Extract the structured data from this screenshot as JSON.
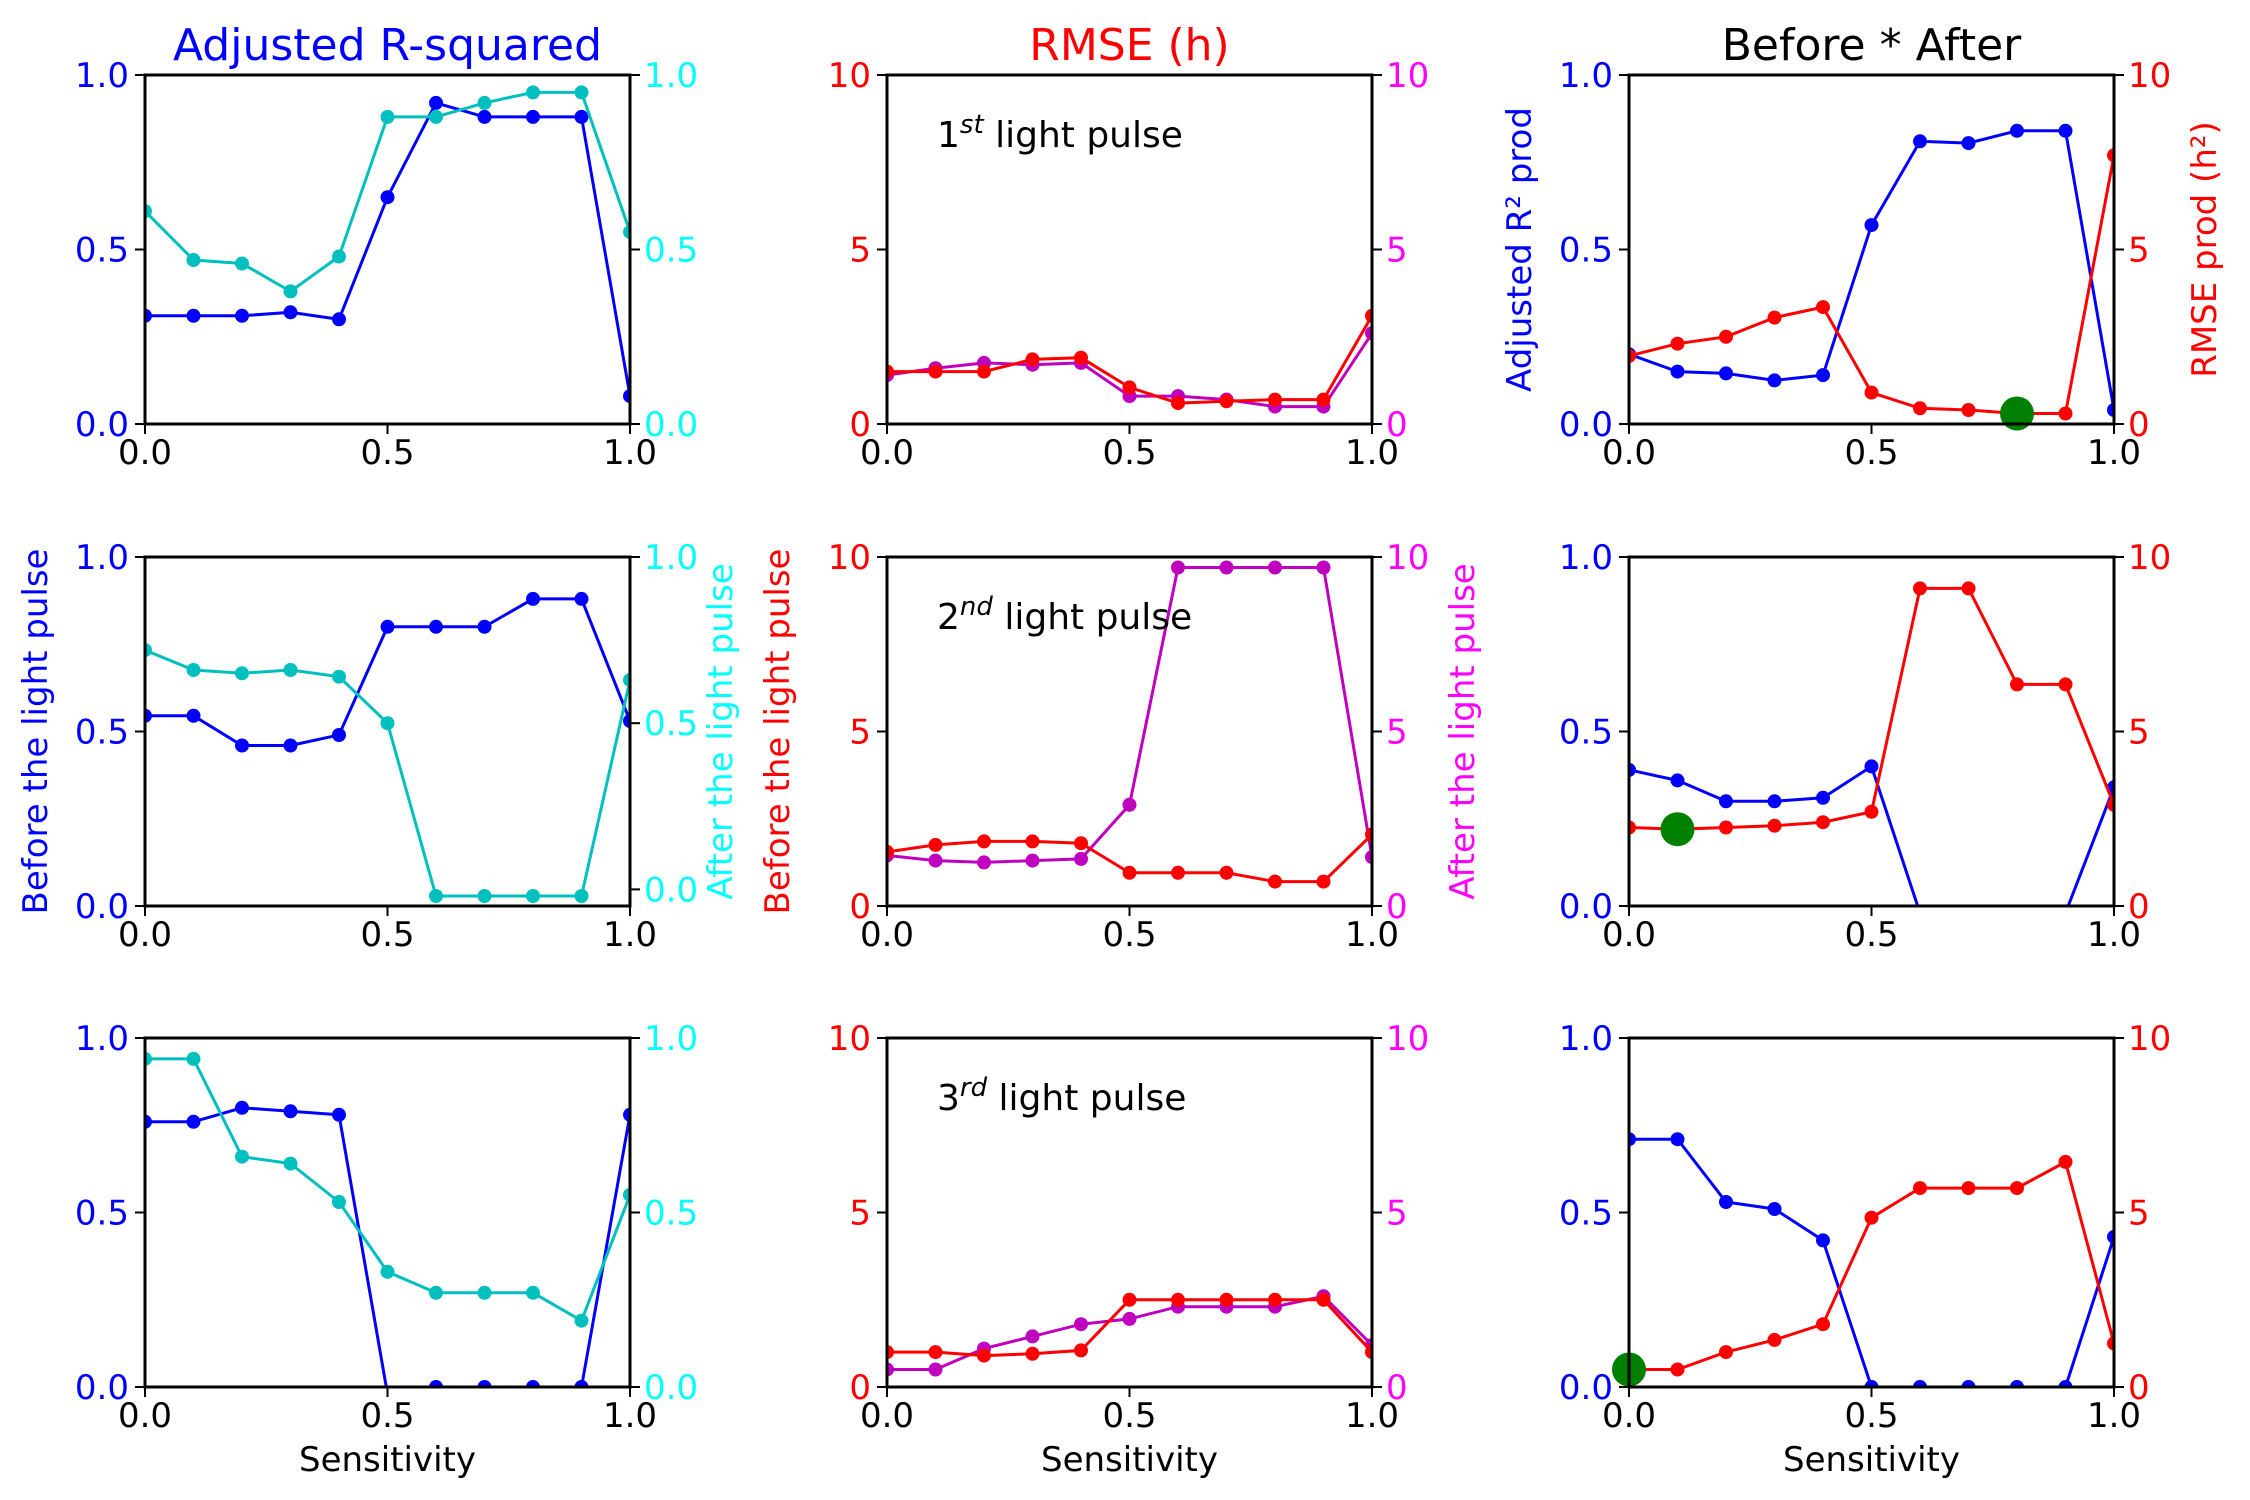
{
  "figure": {
    "column_titles": [
      {
        "text": "Adjusted R-squared",
        "color": "#0000ff"
      },
      {
        "text": "RMSE (h)",
        "color": "#ff0000"
      },
      {
        "text": "Before * After",
        "color": "#000000"
      }
    ],
    "row_annotations": [
      {
        "num": "1",
        "sup": "st",
        "rest": " light pulse"
      },
      {
        "num": "2",
        "sup": "nd",
        "rest": " light pulse"
      },
      {
        "num": "3",
        "sup": "rd",
        "rest": " light pulse"
      }
    ],
    "xlabel": "Sensitivity"
  },
  "chart_data": [
    {
      "type": "line",
      "id": "r2-pulse1",
      "row": 0,
      "col": 0,
      "xlim": [
        0,
        1
      ],
      "xticks": [
        "0.0",
        "0.5",
        "1.0"
      ],
      "left_axis": {
        "ylim": [
          0,
          1
        ],
        "ticks": [
          "0.0",
          "0.5",
          "1.0"
        ],
        "color": "#0000ff",
        "label": ""
      },
      "right_axis": {
        "ylim": [
          0,
          1
        ],
        "ticks": [
          "0.0",
          "0.5",
          "1.0"
        ],
        "color": "#00ffff",
        "label": ""
      },
      "x": [
        0,
        0.1,
        0.2,
        0.3,
        0.4,
        0.5,
        0.6,
        0.7,
        0.8,
        0.9,
        1.0
      ],
      "series": [
        {
          "axis": "left",
          "color": "#0000ff",
          "y": [
            0.31,
            0.31,
            0.31,
            0.32,
            0.3,
            0.65,
            0.92,
            0.88,
            0.88,
            0.88,
            0.08
          ]
        },
        {
          "axis": "right",
          "color": "#00bfbf",
          "y": [
            0.61,
            0.47,
            0.46,
            0.38,
            0.48,
            0.88,
            0.88,
            0.92,
            0.95,
            0.95,
            0.55
          ]
        }
      ]
    },
    {
      "type": "line",
      "id": "rmse-pulse1",
      "row": 0,
      "col": 1,
      "xlim": [
        0,
        1
      ],
      "xticks": [
        "0.0",
        "0.5",
        "1.0"
      ],
      "left_axis": {
        "ylim": [
          0,
          10
        ],
        "ticks": [
          "0",
          "5",
          "10"
        ],
        "color": "#ff0000",
        "label": ""
      },
      "right_axis": {
        "ylim": [
          0,
          10
        ],
        "ticks": [
          "0",
          "5",
          "10"
        ],
        "color": "#ff00ff",
        "label": ""
      },
      "x": [
        0,
        0.1,
        0.2,
        0.3,
        0.4,
        0.5,
        0.6,
        0.7,
        0.8,
        0.9,
        1.0
      ],
      "series": [
        {
          "axis": "right",
          "color": "#bf00bf",
          "y": [
            1.4,
            1.6,
            1.75,
            1.7,
            1.75,
            0.8,
            0.8,
            0.7,
            0.5,
            0.5,
            2.6
          ]
        },
        {
          "axis": "left",
          "color": "#ff0000",
          "y": [
            1.5,
            1.5,
            1.5,
            1.85,
            1.9,
            1.05,
            0.6,
            0.65,
            0.7,
            0.7,
            3.1
          ]
        }
      ]
    },
    {
      "type": "line",
      "id": "prod-pulse1",
      "row": 0,
      "col": 2,
      "xlim": [
        0,
        1
      ],
      "xticks": [
        "0.0",
        "0.5",
        "1.0"
      ],
      "left_axis": {
        "ylim": [
          0,
          1
        ],
        "ticks": [
          "0.0",
          "0.5",
          "1.0"
        ],
        "color": "#0000ff",
        "label": "Adjusted R² prod"
      },
      "right_axis": {
        "ylim": [
          0,
          10
        ],
        "ticks": [
          "0",
          "5",
          "10"
        ],
        "color": "#ff0000",
        "label": "RMSE prod (h²)"
      },
      "x": [
        0,
        0.1,
        0.2,
        0.3,
        0.4,
        0.5,
        0.6,
        0.7,
        0.8,
        0.9,
        1.0
      ],
      "series": [
        {
          "axis": "left",
          "color": "#0000ff",
          "y": [
            0.2,
            0.15,
            0.145,
            0.125,
            0.14,
            0.57,
            0.81,
            0.805,
            0.84,
            0.84,
            0.04
          ]
        },
        {
          "axis": "right",
          "color": "#ff0000",
          "y": [
            1.95,
            2.3,
            2.5,
            3.05,
            3.35,
            0.9,
            0.45,
            0.4,
            0.3,
            0.3,
            7.7
          ]
        }
      ],
      "highlight": {
        "axis": "right",
        "x": 0.8,
        "y": 0.3,
        "color": "#008000"
      }
    },
    {
      "type": "line",
      "id": "r2-pulse2",
      "row": 1,
      "col": 0,
      "xlim": [
        0,
        1
      ],
      "xticks": [
        "0.0",
        "0.5",
        "1.0"
      ],
      "left_axis": {
        "ylim": [
          0,
          1
        ],
        "ticks": [
          "0.0",
          "0.5",
          "1.0"
        ],
        "color": "#0000ff",
        "label": "Before the light pulse"
      },
      "right_axis": {
        "ylim": [
          -0.05,
          1.0
        ],
        "ticks": [
          "0.0",
          "0.5",
          "1.0"
        ],
        "tick_values": [
          0,
          0.5,
          1.0
        ],
        "color": "#00ffff",
        "label": "After the light pulse"
      },
      "x": [
        0,
        0.1,
        0.2,
        0.3,
        0.4,
        0.5,
        0.6,
        0.7,
        0.8,
        0.9,
        1.0
      ],
      "series": [
        {
          "axis": "left",
          "color": "#0000ff",
          "y": [
            0.545,
            0.545,
            0.46,
            0.46,
            0.49,
            0.8,
            0.8,
            0.8,
            0.88,
            0.88,
            0.53
          ]
        },
        {
          "axis": "right",
          "color": "#00bfbf",
          "y": [
            0.72,
            0.66,
            0.65,
            0.66,
            0.64,
            0.5,
            -0.02,
            -0.02,
            -0.02,
            -0.02,
            0.63
          ]
        }
      ]
    },
    {
      "type": "line",
      "id": "rmse-pulse2",
      "row": 1,
      "col": 1,
      "xlim": [
        0,
        1
      ],
      "xticks": [
        "0.0",
        "0.5",
        "1.0"
      ],
      "left_axis": {
        "ylim": [
          0,
          10
        ],
        "ticks": [
          "0",
          "5",
          "10"
        ],
        "color": "#ff0000",
        "label": "Before the light pulse"
      },
      "right_axis": {
        "ylim": [
          0,
          10
        ],
        "ticks": [
          "0",
          "5",
          "10"
        ],
        "color": "#ff00ff",
        "label": "After the light pulse"
      },
      "x": [
        0,
        0.1,
        0.2,
        0.3,
        0.4,
        0.5,
        0.6,
        0.7,
        0.8,
        0.9,
        1.0
      ],
      "series": [
        {
          "axis": "right",
          "color": "#bf00bf",
          "y": [
            1.45,
            1.3,
            1.25,
            1.3,
            1.35,
            2.9,
            9.7,
            9.7,
            9.7,
            9.7,
            1.4
          ]
        },
        {
          "axis": "left",
          "color": "#ff0000",
          "y": [
            1.55,
            1.75,
            1.85,
            1.85,
            1.8,
            0.95,
            0.95,
            0.95,
            0.7,
            0.7,
            2.05
          ]
        }
      ]
    },
    {
      "type": "line",
      "id": "prod-pulse2",
      "row": 1,
      "col": 2,
      "xlim": [
        0,
        1
      ],
      "xticks": [
        "0.0",
        "0.5",
        "1.0"
      ],
      "left_axis": {
        "ylim": [
          0,
          1
        ],
        "ticks": [
          "0.0",
          "0.5",
          "1.0"
        ],
        "color": "#0000ff",
        "label": ""
      },
      "right_axis": {
        "ylim": [
          0,
          10
        ],
        "ticks": [
          "0",
          "5",
          "10"
        ],
        "color": "#ff0000",
        "label": ""
      },
      "x": [
        0,
        0.1,
        0.2,
        0.3,
        0.4,
        0.5,
        0.6,
        0.7,
        0.8,
        0.9,
        1.0
      ],
      "series": [
        {
          "axis": "left",
          "color": "#0000ff",
          "y": [
            0.39,
            0.36,
            0.3,
            0.3,
            0.31,
            0.4,
            -0.02,
            -0.02,
            -0.02,
            -0.02,
            0.34
          ],
          "show": [
            true,
            true,
            true,
            true,
            true,
            true,
            false,
            false,
            false,
            false,
            true
          ]
        },
        {
          "axis": "right",
          "color": "#ff0000",
          "y": [
            2.25,
            2.2,
            2.25,
            2.3,
            2.4,
            2.7,
            9.1,
            9.1,
            6.35,
            6.35,
            2.9
          ]
        }
      ],
      "highlight": {
        "axis": "right",
        "x": 0.1,
        "y": 2.2,
        "color": "#008000"
      }
    },
    {
      "type": "line",
      "id": "r2-pulse3",
      "row": 2,
      "col": 0,
      "xlim": [
        0,
        1
      ],
      "xticks": [
        "0.0",
        "0.5",
        "1.0"
      ],
      "left_axis": {
        "ylim": [
          0,
          1
        ],
        "ticks": [
          "0.0",
          "0.5",
          "1.0"
        ],
        "color": "#0000ff",
        "label": ""
      },
      "right_axis": {
        "ylim": [
          0,
          1
        ],
        "ticks": [
          "0.0",
          "0.5",
          "1.0"
        ],
        "color": "#00ffff",
        "label": ""
      },
      "x": [
        0,
        0.1,
        0.2,
        0.3,
        0.4,
        0.5,
        0.6,
        0.7,
        0.8,
        0.9,
        1.0
      ],
      "series": [
        {
          "axis": "left",
          "color": "#0000ff",
          "y": [
            0.76,
            0.76,
            0.8,
            0.79,
            0.78,
            -0.02,
            0,
            0,
            0,
            0,
            0.78
          ]
        },
        {
          "axis": "right",
          "color": "#00bfbf",
          "y": [
            0.94,
            0.94,
            0.66,
            0.64,
            0.53,
            0.33,
            0.27,
            0.27,
            0.27,
            0.19,
            0.55
          ]
        }
      ]
    },
    {
      "type": "line",
      "id": "rmse-pulse3",
      "row": 2,
      "col": 1,
      "xlim": [
        0,
        1
      ],
      "xticks": [
        "0.0",
        "0.5",
        "1.0"
      ],
      "left_axis": {
        "ylim": [
          0,
          10
        ],
        "ticks": [
          "0",
          "5",
          "10"
        ],
        "color": "#ff0000",
        "label": ""
      },
      "right_axis": {
        "ylim": [
          0,
          10
        ],
        "ticks": [
          "0",
          "5",
          "10"
        ],
        "color": "#ff00ff",
        "label": ""
      },
      "x": [
        0,
        0.1,
        0.2,
        0.3,
        0.4,
        0.5,
        0.6,
        0.7,
        0.8,
        0.9,
        1.0
      ],
      "series": [
        {
          "axis": "right",
          "color": "#bf00bf",
          "y": [
            0.5,
            0.5,
            1.1,
            1.45,
            1.8,
            1.95,
            2.3,
            2.3,
            2.3,
            2.6,
            1.2
          ]
        },
        {
          "axis": "left",
          "color": "#ff0000",
          "y": [
            1.0,
            1.0,
            0.9,
            0.95,
            1.05,
            2.5,
            2.5,
            2.5,
            2.5,
            2.5,
            1.0
          ]
        }
      ]
    },
    {
      "type": "line",
      "id": "prod-pulse3",
      "row": 2,
      "col": 2,
      "xlim": [
        0,
        1
      ],
      "xticks": [
        "0.0",
        "0.5",
        "1.0"
      ],
      "left_axis": {
        "ylim": [
          0,
          1
        ],
        "ticks": [
          "0.0",
          "0.5",
          "1.0"
        ],
        "color": "#0000ff",
        "label": ""
      },
      "right_axis": {
        "ylim": [
          0,
          10
        ],
        "ticks": [
          "0",
          "5",
          "10"
        ],
        "color": "#ff0000",
        "label": ""
      },
      "x": [
        0,
        0.1,
        0.2,
        0.3,
        0.4,
        0.5,
        0.6,
        0.7,
        0.8,
        0.9,
        1.0
      ],
      "series": [
        {
          "axis": "left",
          "color": "#0000ff",
          "y": [
            0.71,
            0.71,
            0.53,
            0.51,
            0.42,
            0,
            0,
            0,
            0,
            0,
            0.43
          ]
        },
        {
          "axis": "right",
          "color": "#ff0000",
          "y": [
            0.5,
            0.5,
            1.0,
            1.35,
            1.8,
            4.85,
            5.7,
            5.7,
            5.7,
            6.45,
            1.25
          ]
        }
      ],
      "highlight": {
        "axis": "right",
        "x": 0.0,
        "y": 0.5,
        "color": "#008000"
      }
    }
  ]
}
